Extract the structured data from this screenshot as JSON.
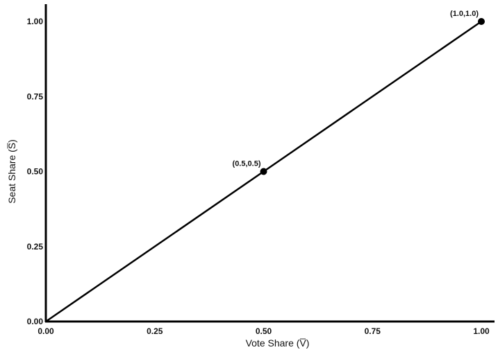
{
  "chart_data": {
    "type": "line",
    "xlabel": "Vote Share (V̅)",
    "ylabel": "Seat Share (S̅)",
    "xlim": [
      0,
      1
    ],
    "ylim": [
      0,
      1
    ],
    "grid": false,
    "x_ticks": [
      {
        "value": 0,
        "label": "0.00"
      },
      {
        "value": 0.25,
        "label": "0.25"
      },
      {
        "value": 0.5,
        "label": "0.50"
      },
      {
        "value": 0.75,
        "label": "0.75"
      },
      {
        "value": 1,
        "label": "1.00"
      }
    ],
    "y_ticks": [
      {
        "value": 0,
        "label": "0.00"
      },
      {
        "value": 0.25,
        "label": "0.25"
      },
      {
        "value": 0.5,
        "label": "0.50"
      },
      {
        "value": 0.75,
        "label": "0.75"
      },
      {
        "value": 1,
        "label": "1.00"
      }
    ],
    "series": [
      {
        "x": [
          0,
          1
        ],
        "y": [
          0,
          1
        ],
        "color": "#000000"
      }
    ],
    "points": [
      {
        "x": 0.5,
        "y": 0.5,
        "label": "(0.5,0.5)"
      },
      {
        "x": 1.0,
        "y": 1.0,
        "label": "(1.0,1.0)"
      }
    ]
  }
}
